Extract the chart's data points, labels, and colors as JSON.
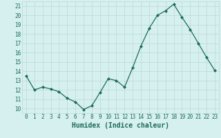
{
  "x": [
    0,
    1,
    2,
    3,
    4,
    5,
    6,
    7,
    8,
    9,
    10,
    11,
    12,
    13,
    14,
    15,
    16,
    17,
    18,
    19,
    20,
    21,
    22,
    23
  ],
  "y": [
    13.5,
    12.0,
    12.3,
    12.1,
    11.8,
    11.1,
    10.7,
    9.9,
    10.3,
    11.7,
    13.2,
    13.0,
    12.3,
    14.4,
    16.7,
    18.6,
    20.0,
    20.5,
    21.2,
    19.8,
    18.5,
    17.0,
    15.5,
    14.1
  ],
  "line_color": "#1a6b5a",
  "marker": "D",
  "marker_size": 2.0,
  "bg_color": "#d6f0ef",
  "grid_color": "#b8d8d6",
  "xlabel": "Humidex (Indice chaleur)",
  "xlim": [
    -0.5,
    23.5
  ],
  "ylim": [
    9.5,
    21.5
  ],
  "yticks": [
    10,
    11,
    12,
    13,
    14,
    15,
    16,
    17,
    18,
    19,
    20,
    21
  ],
  "xticks": [
    0,
    1,
    2,
    3,
    4,
    5,
    6,
    7,
    8,
    9,
    10,
    11,
    12,
    13,
    14,
    15,
    16,
    17,
    18,
    19,
    20,
    21,
    22,
    23
  ],
  "tick_color": "#1a6b5a",
  "tick_fontsize": 5.5,
  "xlabel_fontsize": 7.0,
  "linewidth": 0.9
}
